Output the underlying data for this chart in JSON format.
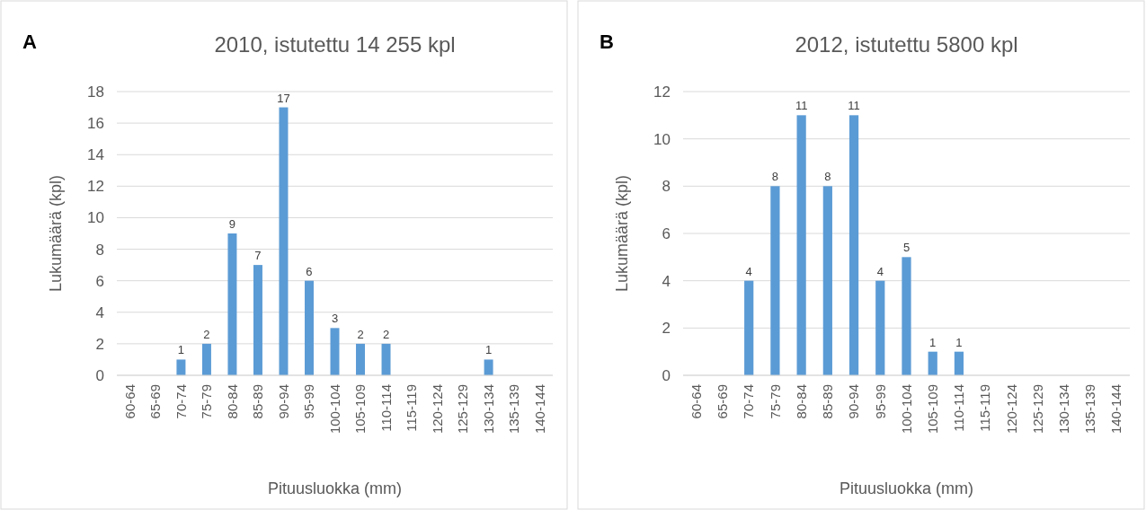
{
  "chart_data": [
    {
      "type": "bar",
      "title": "2010, istutettu 14 255 kpl",
      "xlabel": "Pituusluokka (mm)",
      "ylabel": "Lukumäärä (kpl)",
      "annotations": [
        "A"
      ],
      "categories": [
        "60-64",
        "65-69",
        "70-74",
        "75-79",
        "80-84",
        "85-89",
        "90-94",
        "95-99",
        "100-104",
        "105-109",
        "110-114",
        "115-119",
        "120-124",
        "125-129",
        "130-134",
        "135-139",
        "140-144"
      ],
      "values": [
        0,
        0,
        1,
        2,
        9,
        7,
        17,
        6,
        3,
        2,
        2,
        0,
        0,
        0,
        1,
        0,
        0
      ],
      "value_labels": [
        null,
        null,
        "1",
        "2",
        "9",
        "7",
        "17",
        "6",
        "3",
        "2",
        "2",
        null,
        null,
        null,
        "1",
        null,
        null
      ],
      "color": "#5b9bd5",
      "ylim": [
        0,
        18
      ],
      "yticks": [
        0,
        2,
        4,
        6,
        8,
        10,
        12,
        14,
        16,
        18
      ],
      "grid": "y"
    },
    {
      "type": "bar",
      "title": "2012,  istutettu 5800 kpl",
      "xlabel": "Pituusluokka (mm)",
      "ylabel": "Lukumäärä (kpl)",
      "annotations": [
        "B"
      ],
      "categories": [
        "60-64",
        "65-69",
        "70-74",
        "75-79",
        "80-84",
        "85-89",
        "90-94",
        "95-99",
        "100-104",
        "105-109",
        "110-114",
        "115-119",
        "120-124",
        "125-129",
        "130-134",
        "135-139",
        "140-144"
      ],
      "values": [
        0,
        0,
        4,
        8,
        11,
        8,
        11,
        4,
        5,
        1,
        1,
        0,
        0,
        0,
        0,
        0,
        0
      ],
      "value_labels": [
        null,
        null,
        "4",
        "8",
        "11",
        "8",
        "11",
        "4",
        "5",
        "1",
        "1",
        null,
        null,
        null,
        null,
        null,
        null
      ],
      "color": "#5b9bd5",
      "ylim": [
        0,
        12
      ],
      "yticks": [
        0,
        2,
        4,
        6,
        8,
        10,
        12
      ],
      "grid": "y"
    }
  ]
}
